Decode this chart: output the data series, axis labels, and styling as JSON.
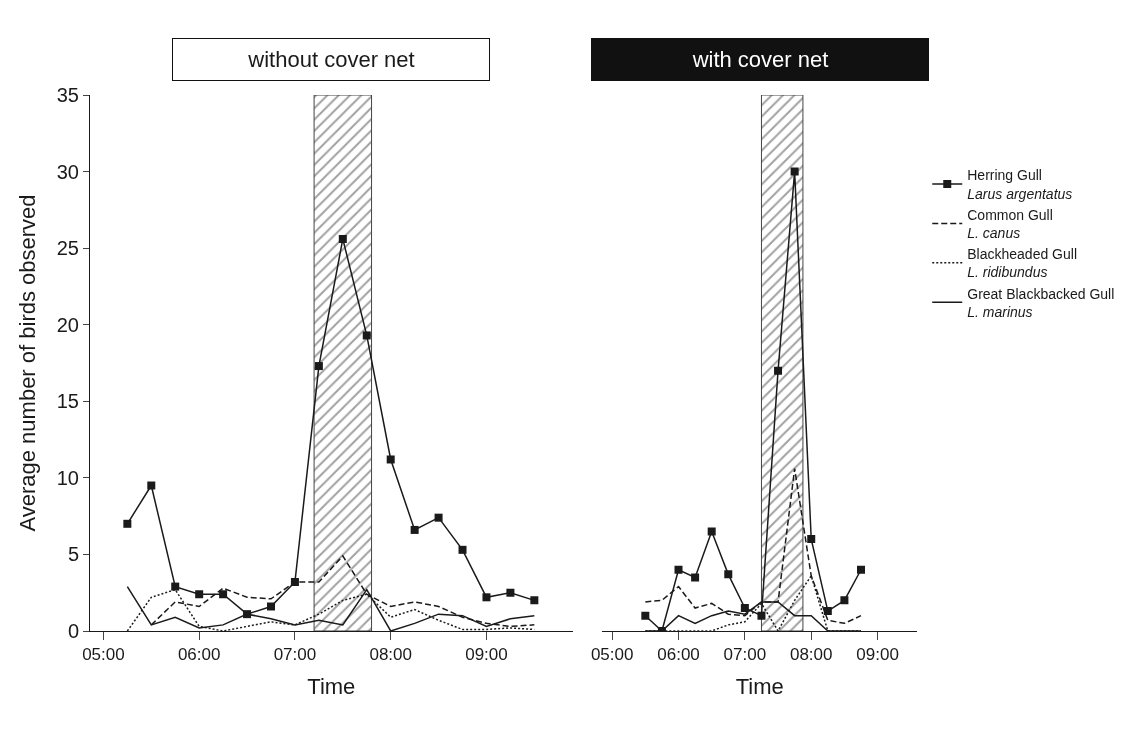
{
  "chart_data": [
    {
      "type": "line",
      "title": "without cover net",
      "xlabel": "Time",
      "ylabel": "Average number of birds observed",
      "x": [
        5.25,
        5.5,
        5.75,
        6.0,
        6.25,
        6.5,
        6.75,
        7.0,
        7.25,
        7.5,
        7.75,
        8.0,
        8.25,
        8.5,
        8.75,
        9.0,
        9.25,
        9.5
      ],
      "series": [
        {
          "name": "Herring Gull\nLarus argentatus",
          "color": "#1a1a1a",
          "marker": "square",
          "line_style": "solid",
          "values": [
            7.0,
            9.5,
            2.9,
            2.4,
            2.4,
            1.1,
            1.6,
            3.2,
            17.3,
            25.6,
            19.3,
            11.2,
            6.6,
            7.4,
            5.3,
            2.2,
            2.5,
            2.0
          ]
        },
        {
          "name": "Common Gull\nL. canus",
          "color": "#1a1a1a",
          "marker": "none",
          "line_style": "dashed",
          "values": [
            null,
            0.4,
            1.9,
            1.6,
            2.8,
            2.2,
            2.1,
            3.2,
            3.2,
            4.9,
            2.4,
            1.6,
            1.9,
            1.6,
            0.9,
            0.5,
            0.3,
            0.4
          ]
        },
        {
          "name": "Blackheaded Gull\nL. ridibundus",
          "color": "#1a1a1a",
          "marker": "none",
          "line_style": "dotted",
          "values": [
            0.0,
            2.2,
            2.7,
            0.3,
            0.0,
            0.3,
            0.6,
            0.4,
            1.1,
            2.0,
            2.4,
            0.9,
            1.4,
            0.7,
            0.1,
            0.1,
            0.2,
            0.1
          ]
        },
        {
          "name": "Great Blackbacked Gull\nL. marinus",
          "color": "#1a1a1a",
          "marker": "none",
          "line_style": "solid",
          "values": [
            2.9,
            0.4,
            0.9,
            0.2,
            0.4,
            1.1,
            0.8,
            0.4,
            0.7,
            0.4,
            2.7,
            0.0,
            0.5,
            1.1,
            1.0,
            0.3,
            0.8,
            1.0
          ]
        }
      ],
      "xlim": [
        4.86,
        9.9
      ],
      "xticks": [
        {
          "value": 5,
          "label": "05:00"
        },
        {
          "value": 6,
          "label": "06:00"
        },
        {
          "value": 7,
          "label": "07:00"
        },
        {
          "value": 8,
          "label": "08:00"
        },
        {
          "value": 9,
          "label": "09:00"
        }
      ],
      "ylim": [
        0,
        35
      ],
      "yticks": [
        0,
        5,
        10,
        15,
        20,
        25,
        30,
        35
      ],
      "bands": [
        {
          "axis": "x",
          "from": 7.2,
          "to": 7.8,
          "color": "#444444"
        }
      ],
      "legend": "right"
    },
    {
      "type": "line",
      "title": "with cover net",
      "xlabel": "Time",
      "x": [
        5.5,
        5.75,
        6.0,
        6.25,
        6.5,
        6.75,
        7.0,
        7.25,
        7.5,
        7.75,
        8.0,
        8.25,
        8.5,
        8.75
      ],
      "series": [
        {
          "color": "#1a1a1a",
          "marker": "square",
          "line_style": "solid",
          "values": [
            1.0,
            0.0,
            4.0,
            3.5,
            6.5,
            3.7,
            1.5,
            1.0,
            17.0,
            30.0,
            6.0,
            1.3,
            2.0,
            4.0
          ]
        },
        {
          "color": "#1a1a1a",
          "marker": "none",
          "line_style": "dashed",
          "values": [
            1.9,
            2.0,
            2.9,
            1.5,
            1.8,
            1.1,
            1.0,
            1.9,
            1.9,
            10.6,
            3.6,
            0.7,
            0.5,
            1.0
          ]
        },
        {
          "color": "#1a1a1a",
          "marker": "none",
          "line_style": "dotted",
          "values": [
            0.0,
            0.0,
            0.0,
            0.0,
            0.0,
            0.4,
            0.6,
            1.8,
            0.0,
            2.0,
            3.6,
            0.0,
            0.0,
            0.0
          ]
        },
        {
          "color": "#1a1a1a",
          "marker": "none",
          "line_style": "solid",
          "values": [
            0.0,
            0.0,
            1.0,
            0.5,
            1.0,
            1.3,
            1.1,
            1.9,
            1.9,
            1.0,
            1.0,
            0.0,
            0.0,
            0.0
          ]
        }
      ],
      "xlim": [
        4.85,
        9.6
      ],
      "xticks": [
        {
          "value": 5,
          "label": "05:00"
        },
        {
          "value": 6,
          "label": "06:00"
        },
        {
          "value": 7,
          "label": "07:00"
        },
        {
          "value": 8,
          "label": "08:00"
        },
        {
          "value": 9,
          "label": "09:00"
        }
      ],
      "ylim": [
        0,
        35
      ],
      "tick_labels": "x",
      "bands": [
        {
          "axis": "x",
          "from": 7.25,
          "to": 7.875,
          "color": "#444444"
        }
      ]
    }
  ]
}
